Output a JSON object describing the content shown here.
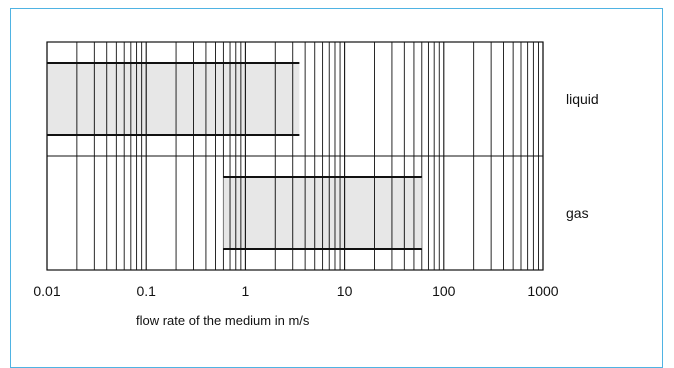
{
  "chart_data": {
    "type": "range-bar",
    "xlabel": "flow rate of the medium in m/s",
    "xscale": "log",
    "xlim": [
      0.01,
      1000
    ],
    "xticks": [
      {
        "value": 0.01,
        "label": "0.01"
      },
      {
        "value": 0.1,
        "label": "0.1"
      },
      {
        "value": 1,
        "label": "1"
      },
      {
        "value": 10,
        "label": "10"
      },
      {
        "value": 100,
        "label": "100"
      },
      {
        "value": 1000,
        "label": "1000"
      }
    ],
    "grid": true,
    "categories": [
      "liquid",
      "gas"
    ],
    "ranges": [
      {
        "category": "liquid",
        "min": 0.01,
        "max": 3.5
      },
      {
        "category": "gas",
        "min": 0.6,
        "max": 60
      }
    ],
    "colors": {
      "frame": "#4fb3e3",
      "bar_fill": "#e3e3e3",
      "bar_edge": "#111111",
      "grid": "#111111"
    }
  }
}
